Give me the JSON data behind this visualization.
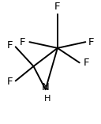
{
  "bg_color": "#ffffff",
  "line_color": "#000000",
  "text_color": "#000000",
  "figsize": [
    1.28,
    1.57
  ],
  "dpi": 100,
  "coords": {
    "CF3C": [
      0.57,
      0.62
    ],
    "C1": [
      0.33,
      0.47
    ],
    "N": [
      0.45,
      0.28
    ]
  },
  "font_size": 9.5
}
